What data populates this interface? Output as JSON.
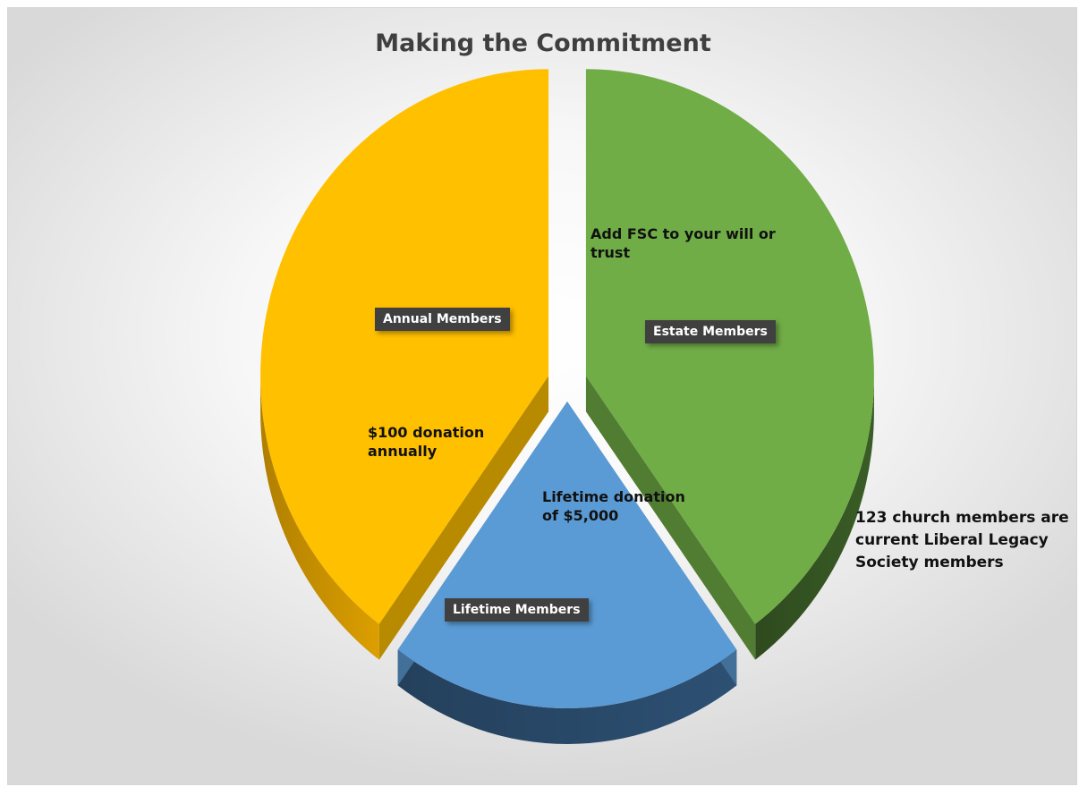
{
  "chart_data": {
    "type": "pie",
    "title": "Making the Commitment",
    "slices": [
      {
        "label": "Estate Members",
        "value": 40,
        "color": "#70ad47",
        "side_color": "#2e4a1e",
        "annotation": [
          "Add FSC to your will or",
          "trust"
        ]
      },
      {
        "label": "Lifetime Members",
        "value": 20,
        "color": "#5b9bd5",
        "side_color": "#24405c",
        "annotation": [
          "Lifetime donation",
          "of $5,000"
        ]
      },
      {
        "label": "Annual Members",
        "value": 40,
        "color": "#ffc000",
        "side_color": "#b07f00",
        "annotation": [
          "$100 donation",
          "annually"
        ]
      }
    ],
    "footnote": [
      "123 church members are",
      "current Liberal Legacy",
      "Society members"
    ],
    "style": "3d-exploded",
    "legend": "none"
  }
}
